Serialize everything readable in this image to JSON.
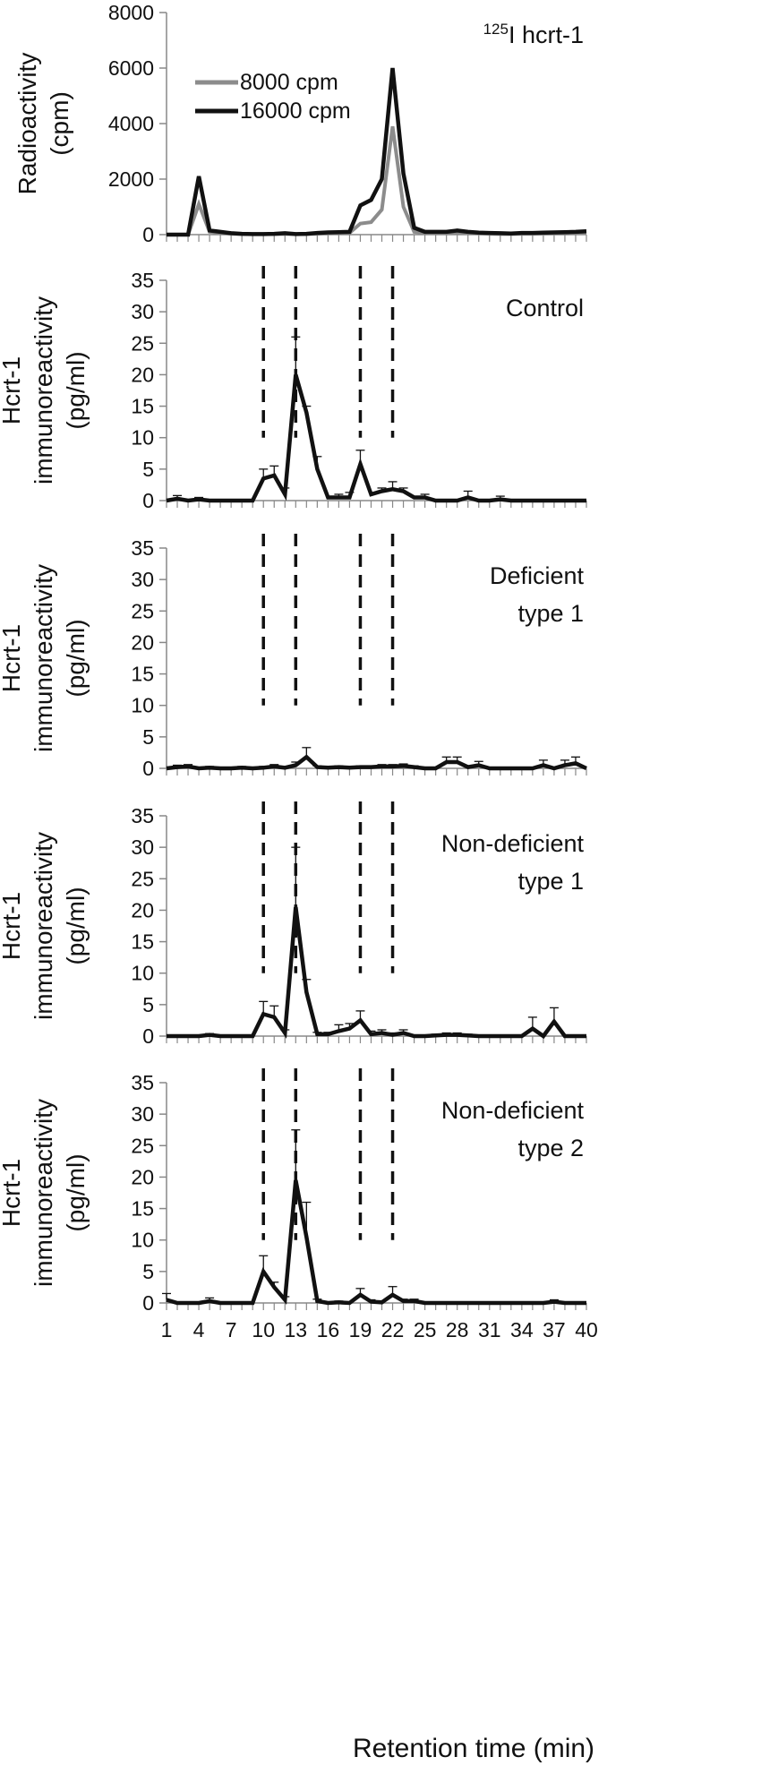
{
  "chart_data": [
    {
      "type": "line",
      "panel_label_sup": "125",
      "panel_label": "I hcrt-1",
      "ylabel_lines": [
        "Radioactivity",
        "(cpm)"
      ],
      "ylim": [
        0,
        8000
      ],
      "yticks": [
        0,
        2000,
        4000,
        6000,
        8000
      ],
      "legend_position": "top-left",
      "x": [
        1,
        2,
        3,
        4,
        5,
        6,
        7,
        8,
        9,
        10,
        11,
        12,
        13,
        14,
        15,
        16,
        17,
        18,
        19,
        20,
        21,
        22,
        23,
        24,
        25,
        26,
        27,
        28,
        29,
        30,
        31,
        32,
        33,
        34,
        35,
        36,
        37,
        38,
        39,
        40
      ],
      "series": [
        {
          "name": "8000 cpm",
          "color": "#8c8c8c",
          "values": [
            0,
            0,
            0,
            1100,
            100,
            50,
            30,
            20,
            20,
            20,
            20,
            20,
            20,
            20,
            30,
            40,
            50,
            60,
            400,
            450,
            900,
            3900,
            1000,
            100,
            50,
            50,
            60,
            80,
            60,
            40,
            30,
            20,
            20,
            30,
            30,
            30,
            40,
            40,
            50,
            60
          ]
        },
        {
          "name": "16000 cpm",
          "color": "#111111",
          "values": [
            0,
            0,
            0,
            2100,
            150,
            100,
            50,
            30,
            20,
            20,
            30,
            50,
            20,
            30,
            60,
            80,
            90,
            100,
            1050,
            1250,
            2000,
            6000,
            2200,
            250,
            100,
            100,
            100,
            150,
            100,
            70,
            60,
            50,
            40,
            60,
            60,
            70,
            80,
            90,
            100,
            120
          ]
        }
      ]
    },
    {
      "type": "line",
      "panel_label_lines": [
        "Control"
      ],
      "ylabel_lines": [
        "Hcrt-1",
        "immunoreactivity",
        "(pg/ml)"
      ],
      "ylim": [
        0,
        35
      ],
      "yticks": [
        0,
        5,
        10,
        15,
        20,
        25,
        30,
        35
      ],
      "x": [
        1,
        2,
        3,
        4,
        5,
        6,
        7,
        8,
        9,
        10,
        11,
        12,
        13,
        14,
        15,
        16,
        17,
        18,
        19,
        20,
        21,
        22,
        23,
        24,
        25,
        26,
        27,
        28,
        29,
        30,
        31,
        32,
        33,
        34,
        35,
        36,
        37,
        38,
        39,
        40
      ],
      "values": [
        0,
        0.3,
        0,
        0.2,
        0,
        0,
        0,
        0,
        0,
        3.5,
        4,
        1,
        20,
        14,
        5,
        0.5,
        0.5,
        0.5,
        5.8,
        1,
        1.5,
        1.8,
        1.5,
        0.5,
        0.5,
        0,
        0,
        0,
        0.5,
        0,
        0,
        0.2,
        0,
        0,
        0,
        0,
        0,
        0,
        0,
        0
      ],
      "error": [
        0,
        0.5,
        0,
        0.3,
        0,
        0,
        0,
        0,
        0,
        1.5,
        1.5,
        1,
        6,
        1,
        2,
        0,
        0.5,
        0.8,
        2.2,
        0,
        0.5,
        1.2,
        0.5,
        0,
        0.5,
        0,
        0,
        0,
        1,
        0,
        0,
        0.5,
        0,
        0,
        0,
        0,
        0,
        0,
        0,
        0
      ]
    },
    {
      "type": "line",
      "panel_label_lines": [
        "Deficient",
        "type 1"
      ],
      "ylabel_lines": [
        "Hcrt-1",
        "immunoreactivity",
        "(pg/ml)"
      ],
      "ylim": [
        0,
        35
      ],
      "yticks": [
        0,
        5,
        10,
        15,
        20,
        25,
        30,
        35
      ],
      "x": [
        1,
        2,
        3,
        4,
        5,
        6,
        7,
        8,
        9,
        10,
        11,
        12,
        13,
        14,
        15,
        16,
        17,
        18,
        19,
        20,
        21,
        22,
        23,
        24,
        25,
        26,
        27,
        28,
        29,
        30,
        31,
        32,
        33,
        34,
        35,
        36,
        37,
        38,
        39,
        40
      ],
      "values": [
        0,
        0.2,
        0.3,
        0,
        0.1,
        0,
        0,
        0.1,
        0,
        0.1,
        0.3,
        0.1,
        0.5,
        1.8,
        0.2,
        0.1,
        0.2,
        0.1,
        0.2,
        0.2,
        0.3,
        0.3,
        0.4,
        0.2,
        0,
        0,
        1,
        1,
        0.2,
        0.5,
        0,
        0,
        0,
        0,
        0,
        0.5,
        0,
        0.5,
        0.8,
        0
      ],
      "error": [
        0,
        0.3,
        0.3,
        0,
        0.2,
        0,
        0,
        0.2,
        0,
        0.2,
        0.3,
        0.2,
        0.5,
        1.5,
        0.2,
        0.2,
        0.2,
        0.2,
        0.2,
        0.2,
        0.3,
        0.3,
        0.3,
        0.2,
        0,
        0,
        0.8,
        0.8,
        0.2,
        0.6,
        0,
        0,
        0,
        0,
        0,
        0.8,
        0,
        0.8,
        1,
        0
      ]
    },
    {
      "type": "line",
      "panel_label_lines": [
        "Non-deficient",
        "type 1"
      ],
      "ylabel_lines": [
        "Hcrt-1",
        "immunoreactivity",
        "(pg/ml)"
      ],
      "ylim": [
        0,
        35
      ],
      "yticks": [
        0,
        5,
        10,
        15,
        20,
        25,
        30,
        35
      ],
      "x": [
        1,
        2,
        3,
        4,
        5,
        6,
        7,
        8,
        9,
        10,
        11,
        12,
        13,
        14,
        15,
        16,
        17,
        18,
        19,
        20,
        21,
        22,
        23,
        24,
        25,
        26,
        27,
        28,
        29,
        30,
        31,
        32,
        33,
        34,
        35,
        36,
        37,
        38,
        39,
        40
      ],
      "values": [
        0,
        0,
        0,
        0,
        0.2,
        0,
        0,
        0,
        0,
        3.5,
        3,
        0.5,
        20.5,
        7,
        0.3,
        0.3,
        0.8,
        1.2,
        2.5,
        0.3,
        0.5,
        0.2,
        0.5,
        0,
        0,
        0.1,
        0.2,
        0.2,
        0.1,
        0,
        0,
        0,
        0,
        0,
        1.2,
        0,
        2.3,
        0,
        0,
        0
      ],
      "error": [
        0,
        0,
        0,
        0,
        0.2,
        0,
        0,
        0,
        0,
        2,
        1.8,
        0.5,
        9.5,
        2,
        0.3,
        0.3,
        1,
        0.8,
        1.5,
        0.5,
        0.5,
        0.3,
        0.5,
        0,
        0,
        0.2,
        0.3,
        0.3,
        0.2,
        0,
        0,
        0,
        0,
        0,
        1.8,
        0,
        2.2,
        0,
        0,
        0
      ]
    },
    {
      "type": "line",
      "panel_label_lines": [
        "Non-deficient",
        "type 2"
      ],
      "ylabel_lines": [
        "Hcrt-1",
        "immunoreactivity",
        "(pg/ml)"
      ],
      "ylim": [
        0,
        35
      ],
      "yticks": [
        0,
        5,
        10,
        15,
        20,
        25,
        30,
        35
      ],
      "x": [
        1,
        2,
        3,
        4,
        5,
        6,
        7,
        8,
        9,
        10,
        11,
        12,
        13,
        14,
        15,
        16,
        17,
        18,
        19,
        20,
        21,
        22,
        23,
        24,
        25,
        26,
        27,
        28,
        29,
        30,
        31,
        32,
        33,
        34,
        35,
        36,
        37,
        38,
        39,
        40
      ],
      "values": [
        0.5,
        0,
        0,
        0,
        0.3,
        0,
        0,
        0,
        0,
        5,
        2.5,
        0.5,
        19.5,
        10.5,
        0.3,
        0,
        0.1,
        0,
        1.3,
        0.2,
        0.1,
        1.3,
        0.3,
        0.3,
        0,
        0,
        0,
        0,
        0,
        0,
        0,
        0,
        0,
        0,
        0,
        0,
        0.2,
        0,
        0,
        0
      ],
      "error": [
        1,
        0,
        0,
        0,
        0.5,
        0,
        0,
        0,
        0,
        2.5,
        0.8,
        0.5,
        8,
        5.5,
        0.3,
        0,
        0.2,
        0,
        1,
        0.3,
        0.2,
        1.3,
        0.3,
        0.3,
        0,
        0,
        0,
        0,
        0,
        0,
        0,
        0,
        0,
        0,
        0,
        0,
        0.3,
        0,
        0,
        0
      ]
    }
  ],
  "shared": {
    "xlabel": "Retention time (min)",
    "xticks": [
      1,
      4,
      7,
      10,
      13,
      16,
      19,
      22,
      25,
      28,
      31,
      34,
      37,
      40
    ],
    "dashed_lines_x": [
      10,
      13,
      19,
      22
    ]
  }
}
